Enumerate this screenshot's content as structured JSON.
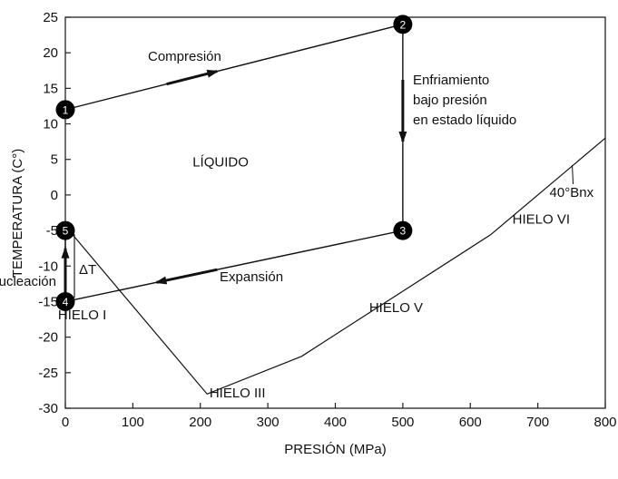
{
  "chart_data": {
    "type": "line",
    "xlabel": "PRESIÓN (MPa)",
    "ylabel": "TEMPERATURA (C°)",
    "xlim": [
      0,
      800
    ],
    "ylim": [
      -30,
      25
    ],
    "xticks": [
      0,
      100,
      200,
      300,
      400,
      500,
      600,
      700,
      800
    ],
    "yticks": [
      25,
      20,
      15,
      10,
      5,
      0,
      -5,
      -10,
      -15,
      -20,
      -25,
      -30
    ],
    "grid": false,
    "phase_boundary": [
      [
        10,
        -5.5
      ],
      [
        210,
        -28
      ],
      [
        350,
        -22.7
      ],
      [
        630,
        -5.6
      ],
      [
        800,
        8
      ]
    ],
    "process_points": [
      {
        "label": "1",
        "x": 0,
        "y": 12
      },
      {
        "label": "2",
        "x": 500,
        "y": 24
      },
      {
        "label": "3",
        "x": 500,
        "y": -5
      },
      {
        "label": "4",
        "x": 0,
        "y": -15
      },
      {
        "label": "5",
        "x": 0,
        "y": -5
      }
    ],
    "process_steps": [
      {
        "from": "1",
        "to": "2",
        "label": "Compresión"
      },
      {
        "from": "2",
        "to": "3",
        "label_lines": [
          "Enfriamiento",
          "bajo presión",
          "en estado líquido"
        ]
      },
      {
        "from": "3",
        "to": "4",
        "label": "Expansión"
      },
      {
        "from": "4",
        "to": "5",
        "label": "Nucleación"
      }
    ],
    "delta_label": "ΔT",
    "regions": [
      {
        "label": "LÍQUIDO",
        "x": 230,
        "y": 4
      },
      {
        "label": "HIELO I",
        "x": 25,
        "y": -17.5
      },
      {
        "label": "HIELO III",
        "x": 255,
        "y": -28.5
      },
      {
        "label": "HIELO V",
        "x": 490,
        "y": -16.5
      },
      {
        "label": "HIELO VI",
        "x": 705,
        "y": -4
      }
    ],
    "annotation": {
      "label": "40°Bnx",
      "x": 751,
      "y": 4.2
    }
  }
}
